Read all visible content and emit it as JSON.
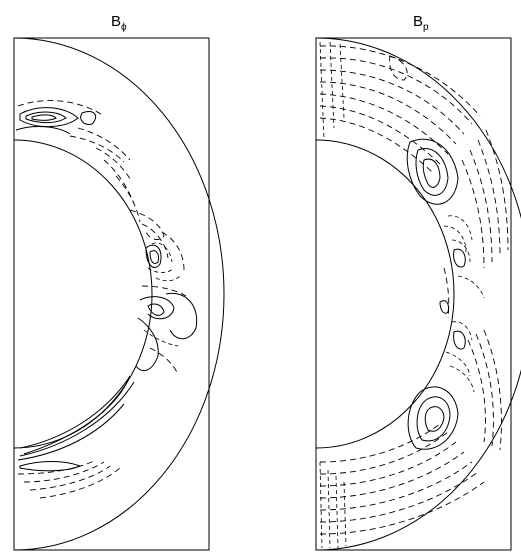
{
  "figure": {
    "panels": [
      {
        "id": "b-phi",
        "title": "B",
        "subscript": "ϕ"
      },
      {
        "id": "b-p",
        "title": "B",
        "subscript": "p"
      }
    ]
  }
}
